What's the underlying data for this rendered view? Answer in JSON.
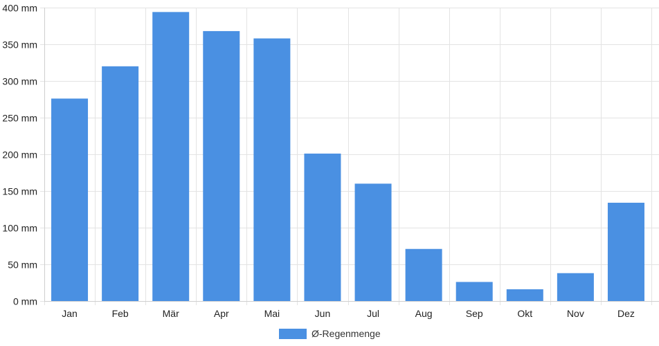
{
  "chart_data": {
    "type": "bar",
    "categories": [
      "Jan",
      "Feb",
      "Mär",
      "Apr",
      "Mai",
      "Jun",
      "Jul",
      "Aug",
      "Sep",
      "Okt",
      "Nov",
      "Dez"
    ],
    "series": [
      {
        "name": "Ø-Regenmenge",
        "values": [
          276,
          320,
          394,
          368,
          358,
          201,
          160,
          71,
          26,
          16,
          38,
          134
        ],
        "color": "#4a90e2"
      }
    ],
    "y_axis": {
      "min": 0,
      "max": 400,
      "ticks": [
        0,
        50,
        100,
        150,
        200,
        250,
        300,
        350,
        400
      ],
      "tick_suffix": " mm"
    },
    "grid": true,
    "legend_position": "bottom-center"
  }
}
